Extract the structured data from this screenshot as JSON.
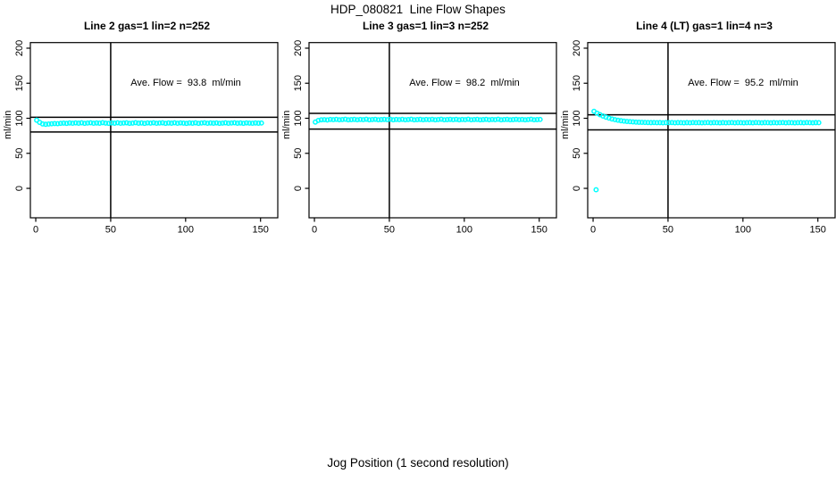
{
  "page": {
    "title": "HDP_080821  Line Flow Shapes",
    "xlabel": "Jog Position (1 second resolution)"
  },
  "chart_data": {
    "type": "scatter",
    "title": "HDP_080821  Line Flow Shapes",
    "xlabel": "Jog Position (1 second resolution)",
    "ylabel": "ml/min",
    "xlim": [
      -3.6,
      161.5
    ],
    "ylim": [
      -42,
      208
    ],
    "xticks": [
      0,
      50,
      100,
      150
    ],
    "yticks": [
      0,
      50,
      100,
      150,
      200
    ],
    "grid": false,
    "legend": "none",
    "point_color": "#00FFFF",
    "line_color": "#000000",
    "marker": "open-circle",
    "panels": [
      {
        "title": "Line 2 gas=1 lin=2 n=252",
        "annotation": "Ave. Flow =  93.8  ml/min",
        "ave_flow": 93.8,
        "gas": 1,
        "lin": 2,
        "n": 252,
        "vline": 50,
        "upper_line": 101.5,
        "lower_line": 80.5,
        "series": {
          "x_start": 0.6,
          "x_step": 2,
          "y": [
            97.3,
            94.1,
            91.9,
            91.4,
            91.8,
            92.1,
            92.5,
            92.3,
            92.8,
            93.1,
            92.7,
            93.3,
            92.9,
            93.4,
            93.0,
            93.5,
            92.8,
            93.2,
            93.6,
            92.9,
            93.3,
            93.0,
            93.7,
            93.1,
            92.8,
            93.4,
            93.0,
            93.6,
            92.9,
            93.2,
            93.5,
            92.8,
            93.1,
            93.7,
            93.0,
            93.3,
            92.7,
            93.4,
            93.1,
            93.6,
            92.9,
            93.2,
            93.5,
            92.8,
            93.3,
            93.0,
            93.6,
            92.9,
            93.4,
            93.1,
            92.7,
            93.3,
            93.0,
            93.5,
            92.8,
            93.2,
            93.6,
            92.9,
            93.3,
            93.0,
            93.4,
            92.8,
            93.1,
            93.5,
            92.9,
            93.2,
            93.6,
            93.0,
            93.3,
            92.8,
            93.4,
            93.1,
            92.9,
            93.3,
            93.0,
            93.2
          ]
        },
        "outliers": []
      },
      {
        "title": "Line 3 gas=1 lin=3 n=252",
        "annotation": "Ave. Flow =  98.2  ml/min",
        "ave_flow": 98.2,
        "gas": 1,
        "lin": 3,
        "n": 252,
        "vline": 50,
        "upper_line": 107.0,
        "lower_line": 84.5,
        "series": {
          "x_start": 0.6,
          "x_step": 2,
          "y": [
            94.6,
            96.9,
            97.8,
            98.0,
            97.6,
            98.3,
            98.0,
            98.5,
            97.9,
            98.2,
            98.6,
            97.8,
            98.1,
            98.4,
            97.9,
            98.3,
            98.0,
            98.6,
            97.8,
            98.2,
            98.5,
            97.9,
            98.1,
            98.4,
            98.0,
            98.6,
            97.8,
            98.3,
            98.0,
            98.5,
            97.9,
            98.2,
            98.6,
            97.8,
            98.1,
            98.4,
            97.9,
            98.3,
            98.0,
            98.5,
            97.8,
            98.2,
            98.6,
            97.9,
            98.1,
            98.4,
            98.0,
            98.5,
            97.8,
            98.3,
            98.0,
            98.6,
            97.9,
            98.2,
            98.4,
            97.8,
            98.1,
            98.5,
            97.9,
            98.3,
            98.0,
            98.6,
            97.8,
            98.2,
            98.4,
            97.9,
            98.1,
            98.5,
            98.0,
            98.3,
            97.8,
            98.2,
            98.6,
            97.9,
            98.1,
            98.3
          ]
        },
        "outliers": []
      },
      {
        "title": "Line 4 (LT) gas=1 lin=4 n=3",
        "annotation": "Ave. Flow =  95.2  ml/min",
        "ave_flow": 95.2,
        "gas": 1,
        "lin": 4,
        "n": 3,
        "vline": 50,
        "upper_line": 105.0,
        "lower_line": 83.5,
        "series": {
          "x_start": 0.6,
          "x_step": 2,
          "y": [
            110.0,
            107.3,
            105.1,
            103.2,
            101.6,
            100.2,
            99.0,
            98.0,
            97.2,
            96.5,
            95.9,
            95.5,
            95.1,
            94.8,
            94.5,
            94.3,
            94.2,
            94.0,
            93.9,
            93.8,
            93.9,
            93.7,
            93.8,
            93.6,
            93.8,
            93.7,
            93.9,
            93.6,
            93.8,
            93.7,
            93.5,
            93.8,
            93.6,
            93.9,
            93.7,
            93.8,
            93.6,
            93.7,
            93.9,
            93.6,
            93.8,
            93.7,
            93.5,
            93.8,
            93.6,
            93.7,
            93.9,
            93.6,
            93.8,
            93.7,
            93.5,
            93.7,
            93.8,
            93.6,
            93.9,
            93.7,
            93.6,
            93.8,
            93.7,
            93.5,
            93.8,
            93.6,
            93.7,
            93.9,
            93.6,
            93.8,
            93.7,
            93.5,
            93.7,
            93.8,
            93.6,
            93.9,
            93.7,
            93.6,
            93.8,
            93.7
          ]
        },
        "outliers": [
          [
            2,
            -2
          ]
        ]
      }
    ]
  }
}
